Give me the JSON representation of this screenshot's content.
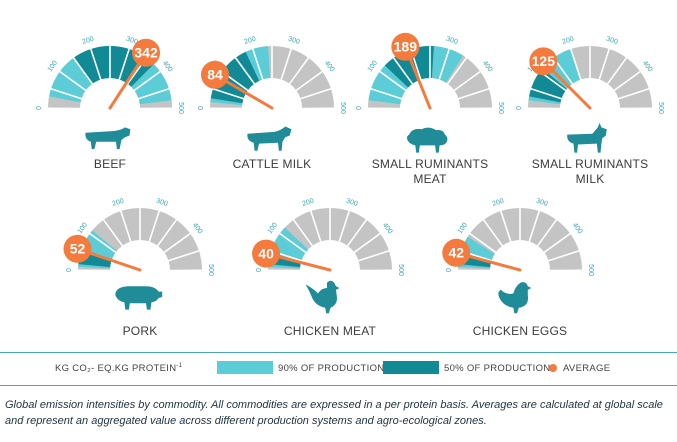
{
  "chart_data": {
    "type": "gauge",
    "scale": {
      "min": 0,
      "max": 500,
      "ticks": [
        "0",
        "100",
        "200",
        "300",
        "400",
        "500"
      ]
    },
    "unit_label": "KG CO₂- EQ.KG PROTEIN",
    "unit_sup": "-1",
    "commodities": [
      {
        "label": "BEEF",
        "label2": "",
        "average": 342,
        "avg_text": "342",
        "p90": [
          30,
          480
        ],
        "p50": [
          150,
          375
        ],
        "icon": "cow-icon"
      },
      {
        "label": "CATTLE MILK",
        "label2": "",
        "average": 84,
        "avg_text": "84",
        "p90": [
          15,
          240
        ],
        "p50": [
          25,
          180
        ],
        "icon": "dairy-cow-icon"
      },
      {
        "label": "SMALL RUMINANTS",
        "label2": "MEAT",
        "average": 189,
        "avg_text": "189",
        "p90": [
          20,
          340
        ],
        "p50": [
          120,
          260
        ],
        "icon": "sheep-icon"
      },
      {
        "label": "SMALL RUMINANTS",
        "label2": "MILK",
        "average": 125,
        "avg_text": "125",
        "p90": [
          20,
          200
        ],
        "p50": [
          30,
          110
        ],
        "icon": "goat-icon"
      },
      {
        "label": "PORK",
        "label2": "",
        "average": 52,
        "avg_text": "52",
        "p90": [
          8,
          110
        ],
        "p50": [
          15,
          50
        ],
        "icon": "pig-icon"
      },
      {
        "label": "CHICKEN MEAT",
        "label2": "",
        "average": 40,
        "avg_text": "40",
        "p90": [
          8,
          120
        ],
        "p50": [
          15,
          45
        ],
        "icon": "rooster-icon"
      },
      {
        "label": "CHICKEN EGGS",
        "label2": "",
        "average": 42,
        "avg_text": "42",
        "p90": [
          8,
          90
        ],
        "p50": [
          15,
          40
        ],
        "icon": "hen-icon"
      }
    ]
  },
  "legend": {
    "p90_label": "90% OF PRODUCTION",
    "p50_label": "50% OF PRODUCTION",
    "avg_label": "AVERAGE"
  },
  "colors": {
    "grey": "#c4c4c4",
    "p90": "#5ccdd6",
    "p50": "#128a96",
    "average": "#f47b3d",
    "text": "#3c3c3c"
  },
  "caption": {
    "lead": "Global emission intensities by commodity.",
    "body": " All commodities are expressed in a per protein basis. Averages are calculated at global scale and represent an aggregated value across different production systems and agro-ecological zones."
  }
}
